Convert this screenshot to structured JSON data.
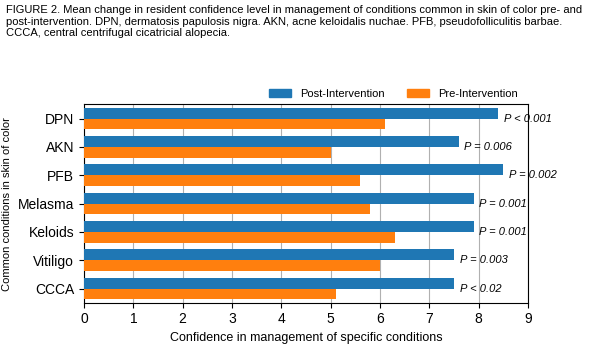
{
  "chart_data": {
    "type": "bar",
    "orientation": "horizontal",
    "title": "FIGURE 2. Mean change in resident confidence level in management of conditions common in skin of color pre- and post-intervention. DPN, dermatosis papulosis nigra. AKN, acne keloidalis nuchae. PFB, pseudofolliculitis barbae. CCCA, central centrifugal cicatricial alopecia.",
    "xlabel": "Confidence in management of specific conditions",
    "ylabel": "Common conditions in skin of color",
    "categories": [
      "DPN",
      "AKN",
      "PFB",
      "Melasma",
      "Keloids",
      "Vitiligo",
      "CCCA"
    ],
    "series": [
      {
        "name": "Post-Intervention",
        "values": [
          8.4,
          7.6,
          8.5,
          7.9,
          7.9,
          7.5,
          7.5
        ]
      },
      {
        "name": "Pre-Intervention",
        "values": [
          6.1,
          5.0,
          5.6,
          5.8,
          6.3,
          6.0,
          5.1
        ]
      }
    ],
    "annotations": [
      "P < 0.001",
      "P = 0.006",
      "P = 0.002",
      "P = 0.001",
      "P = 0.001",
      "P = 0.003",
      "P < 0.02"
    ],
    "xlim": [
      0,
      9
    ],
    "xticks": [
      0,
      1,
      2,
      3,
      4,
      5,
      6,
      7,
      8,
      9
    ],
    "grid": true,
    "legend": "upper right"
  }
}
